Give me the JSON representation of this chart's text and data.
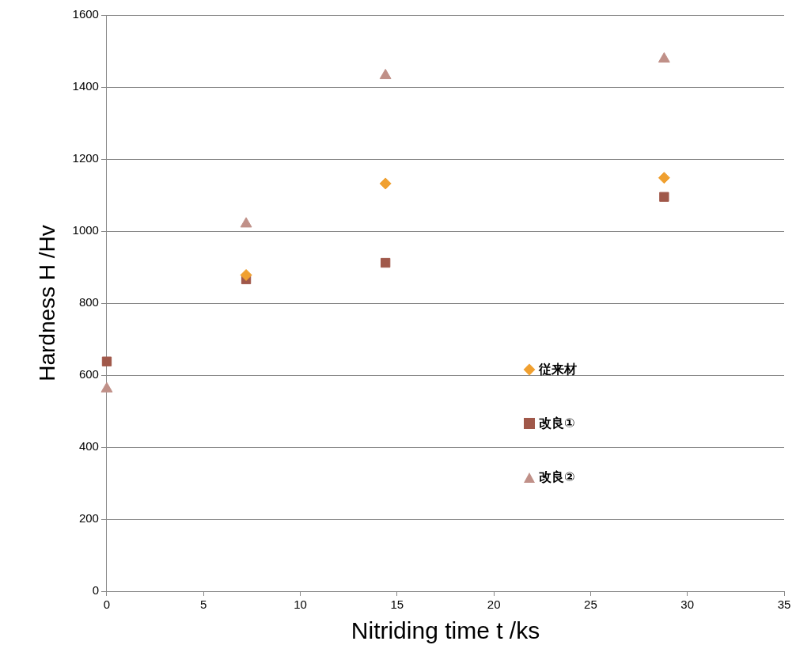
{
  "chart_data": {
    "type": "scatter",
    "xlabel": "Nitriding time t /ks",
    "ylabel": "Hardness H /Hv",
    "x": [
      0,
      7.2,
      14.4,
      28.8
    ],
    "xlim": [
      0,
      35
    ],
    "xticks": [
      0,
      5,
      10,
      15,
      20,
      25,
      30,
      35
    ],
    "ylim": [
      0,
      1600
    ],
    "yticks": [
      0,
      200,
      400,
      600,
      800,
      1000,
      1200,
      1400,
      1600
    ],
    "grid": "y",
    "legend": "right",
    "series": [
      {
        "name": "従来材",
        "color": "#f0a030",
        "marker": "diamond",
        "values": [
          null,
          878,
          1132,
          1148
        ]
      },
      {
        "name": "改良①",
        "color": "#a0584a",
        "marker": "square",
        "values": [
          638,
          866,
          912,
          1095
        ]
      },
      {
        "name": "改良②",
        "color": "#c09088",
        "marker": "triangle",
        "values": [
          562,
          1020,
          1432,
          1478
        ]
      }
    ]
  }
}
